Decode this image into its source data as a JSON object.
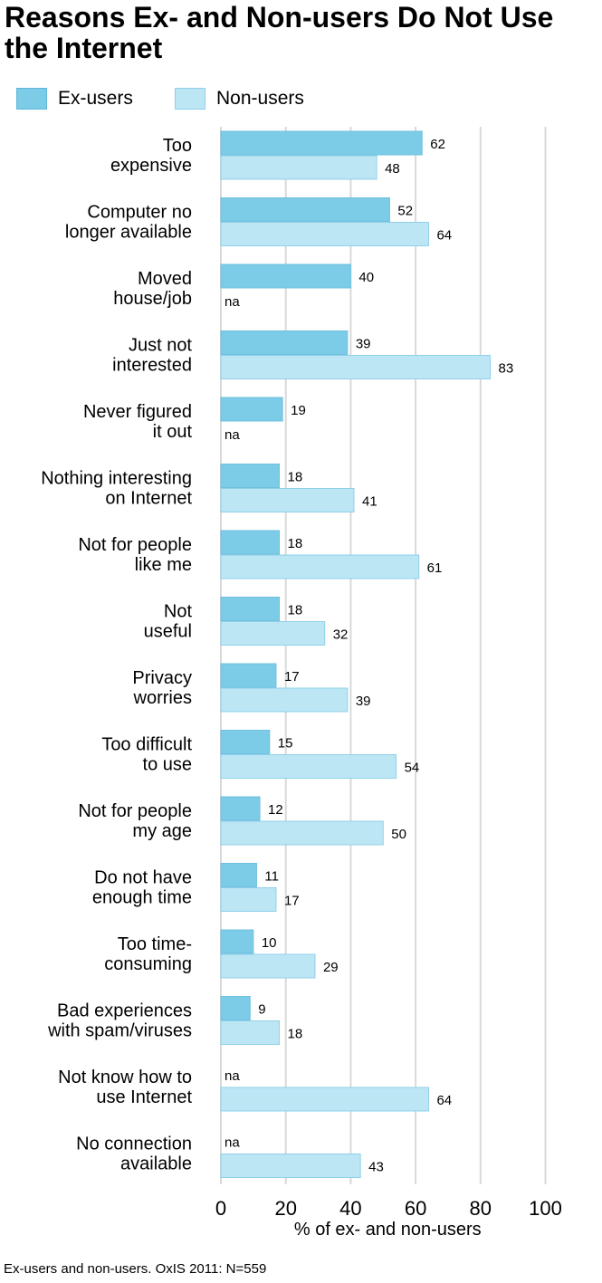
{
  "title": "Reasons Ex- and Non-users Do Not Use the Internet",
  "legend": {
    "ex_label": "Ex-users",
    "non_label": "Non-users"
  },
  "footnote": "Ex-users and non-users. OxIS 2011: N=559",
  "colors": {
    "ex_users": "#7ccbe7",
    "non_users": "#bde6f5",
    "gridline": "#d9d9d9",
    "na_text": "#000000"
  },
  "chart_data": {
    "type": "bar",
    "orientation": "horizontal",
    "title": "Reasons Ex- and Non-users Do Not Use the Internet",
    "xlabel": "% of ex- and non-users",
    "xlim": [
      0,
      100
    ],
    "xticks": [
      0,
      20,
      40,
      60,
      80,
      100
    ],
    "grid": true,
    "legend_position": "top-left",
    "categories": [
      [
        "Too",
        "expensive"
      ],
      [
        "Computer no",
        "longer available"
      ],
      [
        "Moved",
        "house/job"
      ],
      [
        "Just not",
        "interested"
      ],
      [
        "Never figured",
        "it out"
      ],
      [
        "Nothing interesting",
        "on Internet"
      ],
      [
        "Not for people",
        "like me"
      ],
      [
        "Not",
        "useful"
      ],
      [
        "Privacy",
        "worries"
      ],
      [
        "Too difficult",
        "to use"
      ],
      [
        "Not for people",
        "my age"
      ],
      [
        "Do not have",
        "enough time"
      ],
      [
        "Too time-",
        "consuming"
      ],
      [
        "Bad experiences",
        "with spam/viruses"
      ],
      [
        "Not know how to",
        "use Internet"
      ],
      [
        "No connection",
        "available"
      ]
    ],
    "na_label": "na",
    "series": [
      {
        "name": "Ex-users",
        "values": [
          62,
          52,
          40,
          39,
          19,
          18,
          18,
          18,
          17,
          15,
          12,
          11,
          10,
          9,
          null,
          null
        ]
      },
      {
        "name": "Non-users",
        "values": [
          48,
          64,
          null,
          83,
          null,
          41,
          61,
          32,
          39,
          54,
          50,
          17,
          29,
          18,
          64,
          43
        ]
      }
    ]
  }
}
